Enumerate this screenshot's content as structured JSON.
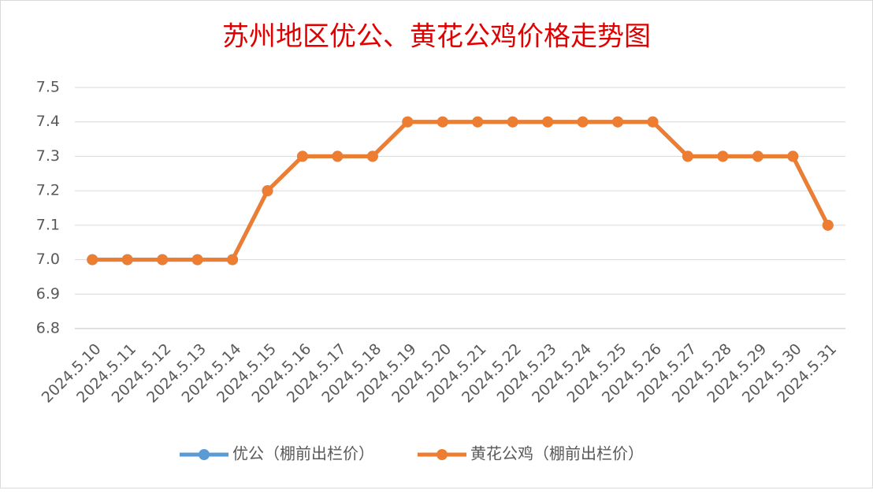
{
  "chart_data": {
    "type": "line",
    "title": "苏州地区优公、黄花公鸡价格走势图",
    "categories": [
      "2024.5.10",
      "2024.5.11",
      "2024.5.12",
      "2024.5.13",
      "2024.5.14",
      "2024.5.15",
      "2024.5.16",
      "2024.5.17",
      "2024.5.18",
      "2024.5.19",
      "2024.5.20",
      "2024.5.21",
      "2024.5.22",
      "2024.5.23",
      "2024.5.24",
      "2024.5.25",
      "2024.5.26",
      "2024.5.27",
      "2024.5.28",
      "2024.5.29",
      "2024.5.30",
      "2024.5.31"
    ],
    "series": [
      {
        "name": "优公（棚前出栏价）",
        "color": "#5b9bd5",
        "values": [
          7.0,
          7.0,
          7.0,
          7.0,
          7.0,
          7.2,
          7.3,
          7.3,
          7.3,
          7.4,
          7.4,
          7.4,
          7.4,
          7.4,
          7.4,
          7.4,
          7.4,
          7.3,
          7.3,
          7.3,
          7.3,
          7.1
        ]
      },
      {
        "name": "黄花公鸡（棚前出栏价）",
        "color": "#ed7d31",
        "values": [
          7.0,
          7.0,
          7.0,
          7.0,
          7.0,
          7.2,
          7.3,
          7.3,
          7.3,
          7.4,
          7.4,
          7.4,
          7.4,
          7.4,
          7.4,
          7.4,
          7.4,
          7.3,
          7.3,
          7.3,
          7.3,
          7.1
        ]
      }
    ],
    "ylim": [
      6.8,
      7.5
    ],
    "yticks": [
      6.8,
      6.9,
      {
        "value": 7,
        "label": "7.0"
      },
      7.1,
      7.2,
      7.3,
      7.4,
      7.5
    ],
    "grid": true,
    "legend": "bottom"
  }
}
